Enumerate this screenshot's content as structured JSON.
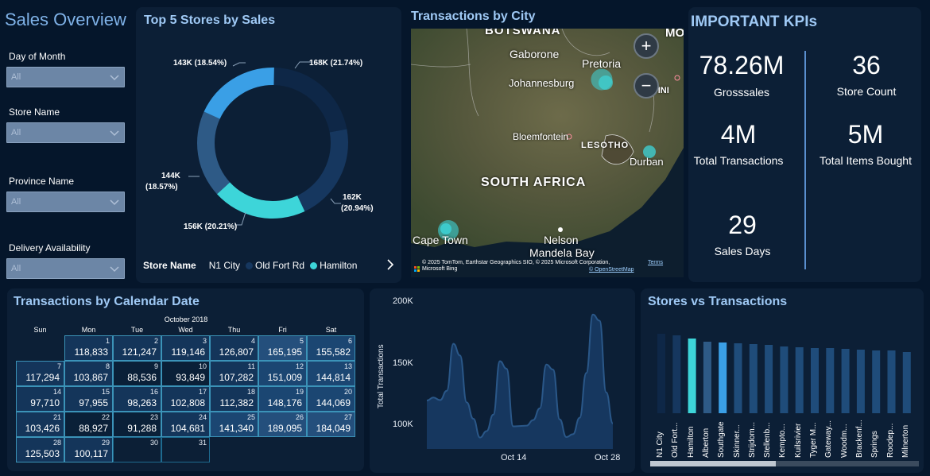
{
  "page": {
    "title": "Sales Overview"
  },
  "filters": [
    {
      "label": "Day of Month",
      "value": "All"
    },
    {
      "label": "Store Name",
      "value": "All"
    },
    {
      "label": "Province Name",
      "value": "All"
    },
    {
      "label": "Delivery Availability",
      "value": "All"
    }
  ],
  "top_stores": {
    "title": "Top 5 Stores by Sales",
    "slice_labels": [
      "168K (21.74%)",
      "162K",
      "(20.94%)",
      "156K (20.21%)",
      "144K",
      "(18.57%)",
      "143K (18.54%)"
    ],
    "legend_title": "Store Name",
    "legend_items": [
      {
        "name": "N1 City",
        "color": "#0e2747"
      },
      {
        "name": "Old Fort Rd",
        "color": "#16375f"
      },
      {
        "name": "Hamilton",
        "color": "#3dd5d9"
      }
    ],
    "chart_data": {
      "type": "pie",
      "title": "Top 5 Stores by Sales",
      "categories": [
        "N1 City",
        "Old Fort Rd",
        "Hamilton",
        "Alberton",
        "Southgate"
      ],
      "values": [
        168,
        162,
        156,
        144,
        143
      ],
      "percents": [
        21.74,
        20.94,
        20.21,
        18.57,
        18.54
      ],
      "colors": [
        "#0e2747",
        "#16375f",
        "#3dd5d9",
        "#2e5a86",
        "#3a9fe6"
      ]
    }
  },
  "map": {
    "title": "Transactions by City",
    "labels": {
      "botswana": "BOTSWANA",
      "mo": "MO",
      "gaborone": "Gaborone",
      "pretoria": "Pretoria",
      "johannesburg": "Johannesburg",
      "tini": "TINI",
      "bloemfontein": "Bloemfontein",
      "lesotho": "LESOTHO",
      "durban": "Durban",
      "south_africa": "SOUTH AFRICA",
      "cape_town": "Cape Town",
      "nelson": "Nelson",
      "mandela_bay": "Mandela Bay"
    },
    "attribution": "© 2025 TomTom, Earthstar Geographics SIO, © 2025 Microsoft Corporation,",
    "terms": "Terms",
    "osm": "© OpenStreetMap",
    "bing": "Microsoft Bing",
    "zoom_in": "+",
    "zoom_out": "−"
  },
  "kpis": {
    "title": "IMPORTANT KPIs",
    "gross_sales": {
      "value": "78.26M",
      "label": "Grosssales"
    },
    "store_count": {
      "value": "36",
      "label": "Store Count"
    },
    "total_transactions": {
      "value": "4M",
      "label": "Total Transactions"
    },
    "total_items": {
      "value": "5M",
      "label": "Total Items Bought"
    },
    "sales_days": {
      "value": "29",
      "label": "Sales Days"
    }
  },
  "calendar": {
    "title": "Transactions by Calendar Date",
    "month": "October 2018",
    "weekdays": [
      "Sun",
      "Mon",
      "Tue",
      "Wed",
      "Thu",
      "Fri",
      "Sat"
    ],
    "days": [
      {
        "day": "1",
        "value": "118,833"
      },
      {
        "day": "2",
        "value": "121,247"
      },
      {
        "day": "3",
        "value": "119,146"
      },
      {
        "day": "4",
        "value": "126,807"
      },
      {
        "day": "5",
        "value": "165,195"
      },
      {
        "day": "6",
        "value": "155,582"
      },
      {
        "day": "7",
        "value": "117,294"
      },
      {
        "day": "8",
        "value": "103,867"
      },
      {
        "day": "9",
        "value": "88,536"
      },
      {
        "day": "10",
        "value": "93,849"
      },
      {
        "day": "11",
        "value": "107,282"
      },
      {
        "day": "12",
        "value": "151,009"
      },
      {
        "day": "13",
        "value": "144,814"
      },
      {
        "day": "14",
        "value": "97,710"
      },
      {
        "day": "15",
        "value": "97,955"
      },
      {
        "day": "16",
        "value": "98,263"
      },
      {
        "day": "17",
        "value": "102,808"
      },
      {
        "day": "18",
        "value": "112,382"
      },
      {
        "day": "19",
        "value": "148,176"
      },
      {
        "day": "20",
        "value": "144,069"
      },
      {
        "day": "21",
        "value": "103,426"
      },
      {
        "day": "22",
        "value": "88,927"
      },
      {
        "day": "23",
        "value": "91,288"
      },
      {
        "day": "24",
        "value": "104,681"
      },
      {
        "day": "25",
        "value": "141,340"
      },
      {
        "day": "26",
        "value": "189,095"
      },
      {
        "day": "27",
        "value": "184,049"
      },
      {
        "day": "28",
        "value": "125,503"
      },
      {
        "day": "29",
        "value": "100,117"
      },
      {
        "day": "30",
        "value": ""
      },
      {
        "day": "31",
        "value": ""
      }
    ]
  },
  "area_chart": {
    "chart_data": {
      "type": "area",
      "ylabel": "Total Transactions",
      "y_ticks": [
        "200K",
        "150K",
        "100K"
      ],
      "x_ticks": [
        "Oct 14",
        "Oct 28"
      ],
      "ylim": [
        80000,
        200000
      ],
      "x": [
        1,
        2,
        3,
        4,
        5,
        6,
        7,
        8,
        9,
        10,
        11,
        12,
        13,
        14,
        15,
        16,
        17,
        18,
        19,
        20,
        21,
        22,
        23,
        24,
        25,
        26,
        27,
        28,
        29
      ],
      "values": [
        118833,
        121247,
        119146,
        126807,
        165195,
        155582,
        117294,
        103867,
        88536,
        93849,
        107282,
        151009,
        144814,
        97710,
        97955,
        98263,
        102808,
        112382,
        148176,
        144069,
        103426,
        88927,
        91288,
        104681,
        141340,
        189095,
        184049,
        125503,
        100117
      ]
    }
  },
  "stores_bar": {
    "title": "Stores vs Transactions",
    "chart_data": {
      "type": "bar",
      "title": "Stores vs Transactions",
      "categories": [
        "N1 City",
        "Old Fort...",
        "Hamilton",
        "Alberton",
        "Southgate",
        "Skinner...",
        "Strijdom...",
        "Stellenb...",
        "Kempto...",
        "Kuilsrivier",
        "Tyger M...",
        "Gateway...",
        "Woodm...",
        "Brackenf...",
        "Springs",
        "Roodep...",
        "Milnerton"
      ],
      "values": [
        100,
        98,
        94,
        90,
        89,
        88,
        87,
        86,
        84,
        83,
        82,
        82,
        81,
        80,
        79,
        79,
        77
      ],
      "colors": [
        "#0e2747",
        "#16375f",
        "#3dd5d9",
        "#2e5a86",
        "#3a9fe6",
        "#1f4c7a",
        "#1f4c7a",
        "#1f4c7a",
        "#1f4c7a",
        "#1f4c7a",
        "#1f4c7a",
        "#1f4c7a",
        "#1f4c7a",
        "#1f4c7a",
        "#1f4c7a",
        "#1f4c7a",
        "#1f4c7a"
      ]
    }
  }
}
